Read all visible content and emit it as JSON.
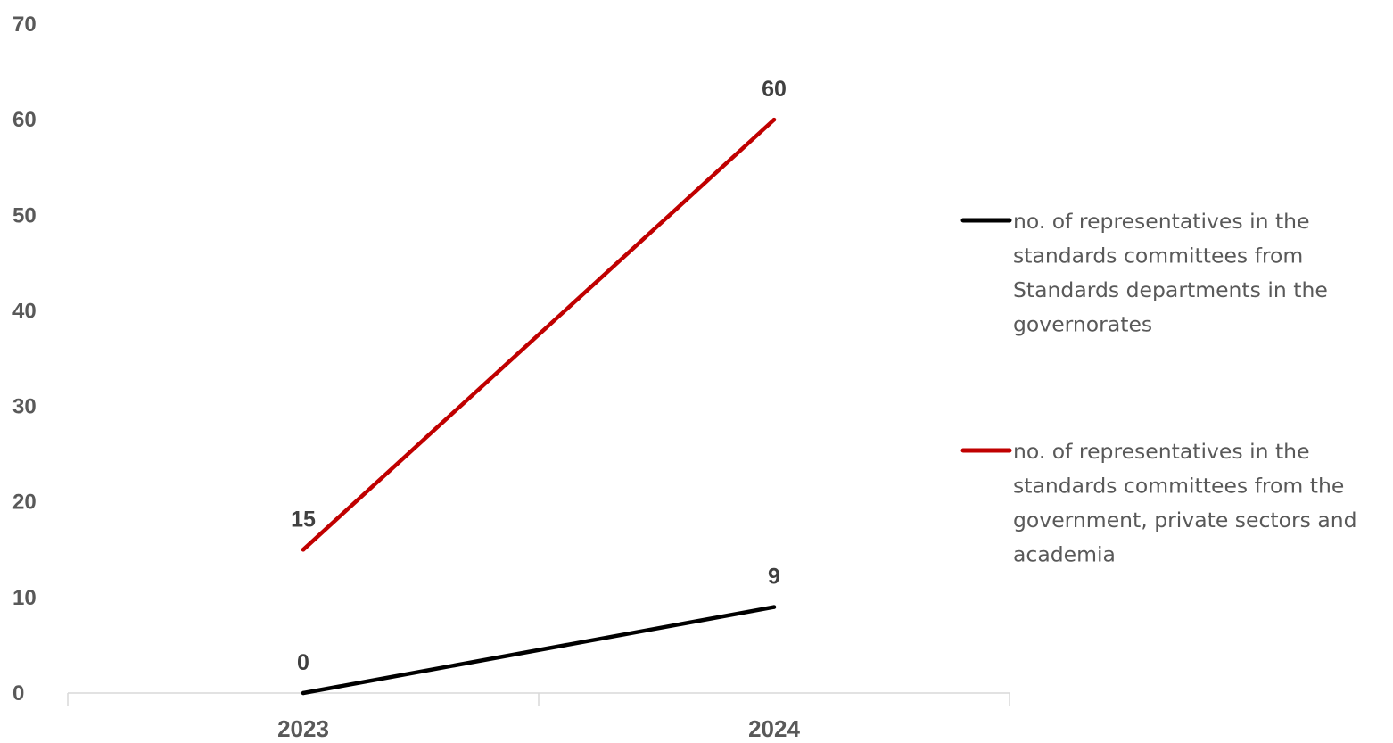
{
  "chart_data": {
    "type": "line",
    "categories": [
      "2023",
      "2024"
    ],
    "series": [
      {
        "name": "no. of representatives in the standards committees from Standards departments in the governorates",
        "name_lines": [
          "no. of representatives in the",
          "standards committees from",
          "Standards departments in the",
          "governorates"
        ],
        "values": [
          0,
          9
        ],
        "color": "#000000"
      },
      {
        "name": "no. of representatives in the standards committees from the government, private sectors and academia",
        "name_lines": [
          "no. of representatives in the",
          "standards committees from the",
          "government, private sectors and",
          "academia"
        ],
        "values": [
          15,
          60
        ],
        "color": "#c00000"
      }
    ],
    "yticks": [
      "0",
      "10",
      "20",
      "30",
      "40",
      "50",
      "60",
      "70"
    ],
    "ylim": [
      0,
      70
    ],
    "grid": false,
    "legend_position": "right",
    "data_labels": true
  }
}
